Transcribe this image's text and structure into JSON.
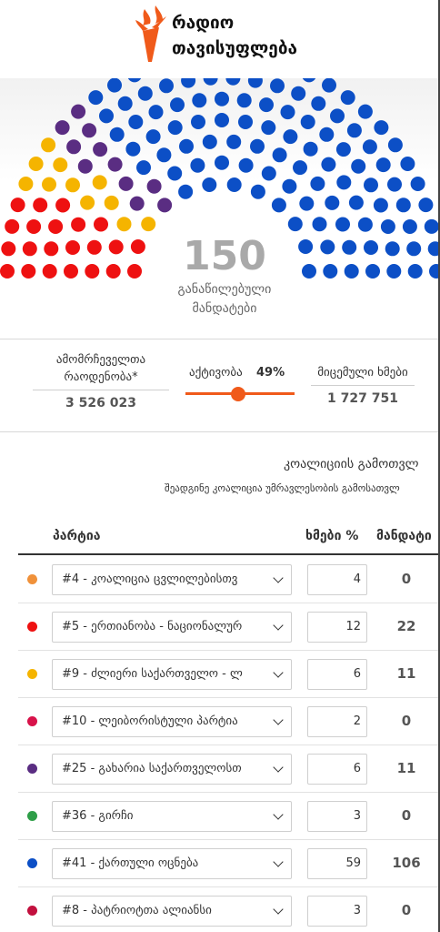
{
  "brand": {
    "line1": "რადიო",
    "line2": "თავისუფლება",
    "logo_icon": "torch-flame-icon",
    "accent": "#f05a1a"
  },
  "parliament": {
    "total_seats": "150",
    "total_label_line1": "განაწილებული",
    "total_label_line2": "მანდატები",
    "seat_colors": {
      "red": "#ee1111",
      "yellow": "#f5b400",
      "purple": "#5a2d82",
      "blue": "#0c4fc6"
    }
  },
  "stats": {
    "electorate_label_line1": "ამომრჩეველთა",
    "electorate_label_line2": "რაოდენობა*",
    "electorate_value": "3 526 023",
    "turnout_label": "აქტივობა",
    "turnout_value": "49%",
    "turnout_fraction": 0.49,
    "votes_cast_label": "მიცემული ხმები",
    "votes_cast_value": "1 727 751"
  },
  "coalition": {
    "title": "კოალიციის გამოთვლ",
    "subtitle": "შეადგინე კოალიცია უმრავლესობის გამოსათვლ"
  },
  "table": {
    "col_party": "პარტია",
    "col_votes": "ხმები %",
    "col_seats": "მანდატი",
    "rows": [
      {
        "color": "#f0913a",
        "party": "#4 - კოალიცია ცვლილებისთვ",
        "votes": "4",
        "seats": "0"
      },
      {
        "color": "#ee1111",
        "party": "#5 - ერთიანობა - ნაციონალურ",
        "votes": "12",
        "seats": "22"
      },
      {
        "color": "#f5b400",
        "party": "#9 - ძლიერი საქართველო - ლ",
        "votes": "6",
        "seats": "11"
      },
      {
        "color": "#d8124a",
        "party": "#10 - ლეიბორისტული პარტია",
        "votes": "2",
        "seats": "0"
      },
      {
        "color": "#5a2d82",
        "party": "#25 - გახარია საქართველოსთ",
        "votes": "6",
        "seats": "11"
      },
      {
        "color": "#2e9e48",
        "party": "#36 - გირჩი",
        "votes": "3",
        "seats": "0"
      },
      {
        "color": "#0c4fc6",
        "party": "#41 - ქართული ოცნება",
        "votes": "59",
        "seats": "106"
      },
      {
        "color": "#c2103e",
        "party": "#8 - პატრიოტთა ალიანსი",
        "votes": "3",
        "seats": "0"
      }
    ]
  }
}
